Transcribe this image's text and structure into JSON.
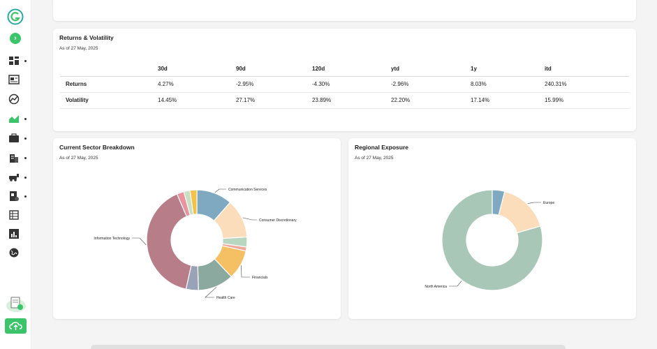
{
  "sidebar": {
    "items": [
      {
        "name": "dashboard",
        "has_dot": true
      },
      {
        "name": "news",
        "has_dot": false
      },
      {
        "name": "analytics",
        "has_dot": false
      },
      {
        "name": "performance",
        "has_dot": true
      },
      {
        "name": "portfolio",
        "has_dot": true
      },
      {
        "name": "companies",
        "has_dot": true
      },
      {
        "name": "transport",
        "has_dot": true
      },
      {
        "name": "reports",
        "has_dot": true
      },
      {
        "name": "ledger",
        "has_dot": false
      },
      {
        "name": "statistics",
        "has_dot": false
      },
      {
        "name": "globe",
        "has_dot": false
      }
    ],
    "accent": "#3cc46a"
  },
  "returns_card": {
    "title": "Returns & Volatility",
    "as_of": "As of 27 May, 2025",
    "columns": [
      "30d",
      "90d",
      "120d",
      "ytd",
      "1y",
      "itd"
    ],
    "rows": [
      {
        "label": "Returns",
        "values": [
          "4.27%",
          "-2.95%",
          "-4.30%",
          "-2.96%",
          "8.03%",
          "240.31%"
        ]
      },
      {
        "label": "Volatility",
        "values": [
          "14.45%",
          "27.17%",
          "23.89%",
          "22.20%",
          "17.14%",
          "15.99%"
        ]
      }
    ]
  },
  "sector_card": {
    "title": "Current Sector Breakdown",
    "as_of": "As of 27 May, 2025"
  },
  "regional_card": {
    "title": "Regional Exposure",
    "as_of": "As of 27 May, 2025"
  },
  "chart_data": [
    {
      "type": "pie",
      "title": "Current Sector Breakdown",
      "labels": [
        "Communication Services",
        "Consumer Discretionary",
        "Financials",
        "Health Care",
        "Information Technology"
      ],
      "slices": [
        {
          "label": "Communication Services",
          "value": 11.5,
          "color": "#7fa9c0"
        },
        {
          "label": "Consumer Discretionary",
          "value": 12.5,
          "color": "#fbdcbb"
        },
        {
          "label": "",
          "value": 3.2,
          "color": "#b9d6c1"
        },
        {
          "label": "",
          "value": 1.3,
          "color": "#f0a89a"
        },
        {
          "label": "Financials",
          "value": 9.5,
          "color": "#f5bf63"
        },
        {
          "label": "Health Care",
          "value": 11.5,
          "color": "#8ca99f"
        },
        {
          "label": "",
          "value": 4.0,
          "color": "#9aa2b7"
        },
        {
          "label": "Information Technology",
          "value": 40.0,
          "color": "#b77d88"
        },
        {
          "label": "",
          "value": 2.3,
          "color": "#e8939e"
        },
        {
          "label": "",
          "value": 2.0,
          "color": "#c9dfc3"
        },
        {
          "label": "",
          "value": 2.2,
          "color": "#f4c24a"
        }
      ]
    },
    {
      "type": "pie",
      "title": "Regional Exposure",
      "labels": [
        "Europe",
        "North America"
      ],
      "slices": [
        {
          "label": "",
          "value": 4.0,
          "color": "#7fa9c0"
        },
        {
          "label": "Europe",
          "value": 16.5,
          "color": "#fbdcbb"
        },
        {
          "label": "North America",
          "value": 79.5,
          "color": "#a8c7b6"
        }
      ]
    }
  ]
}
